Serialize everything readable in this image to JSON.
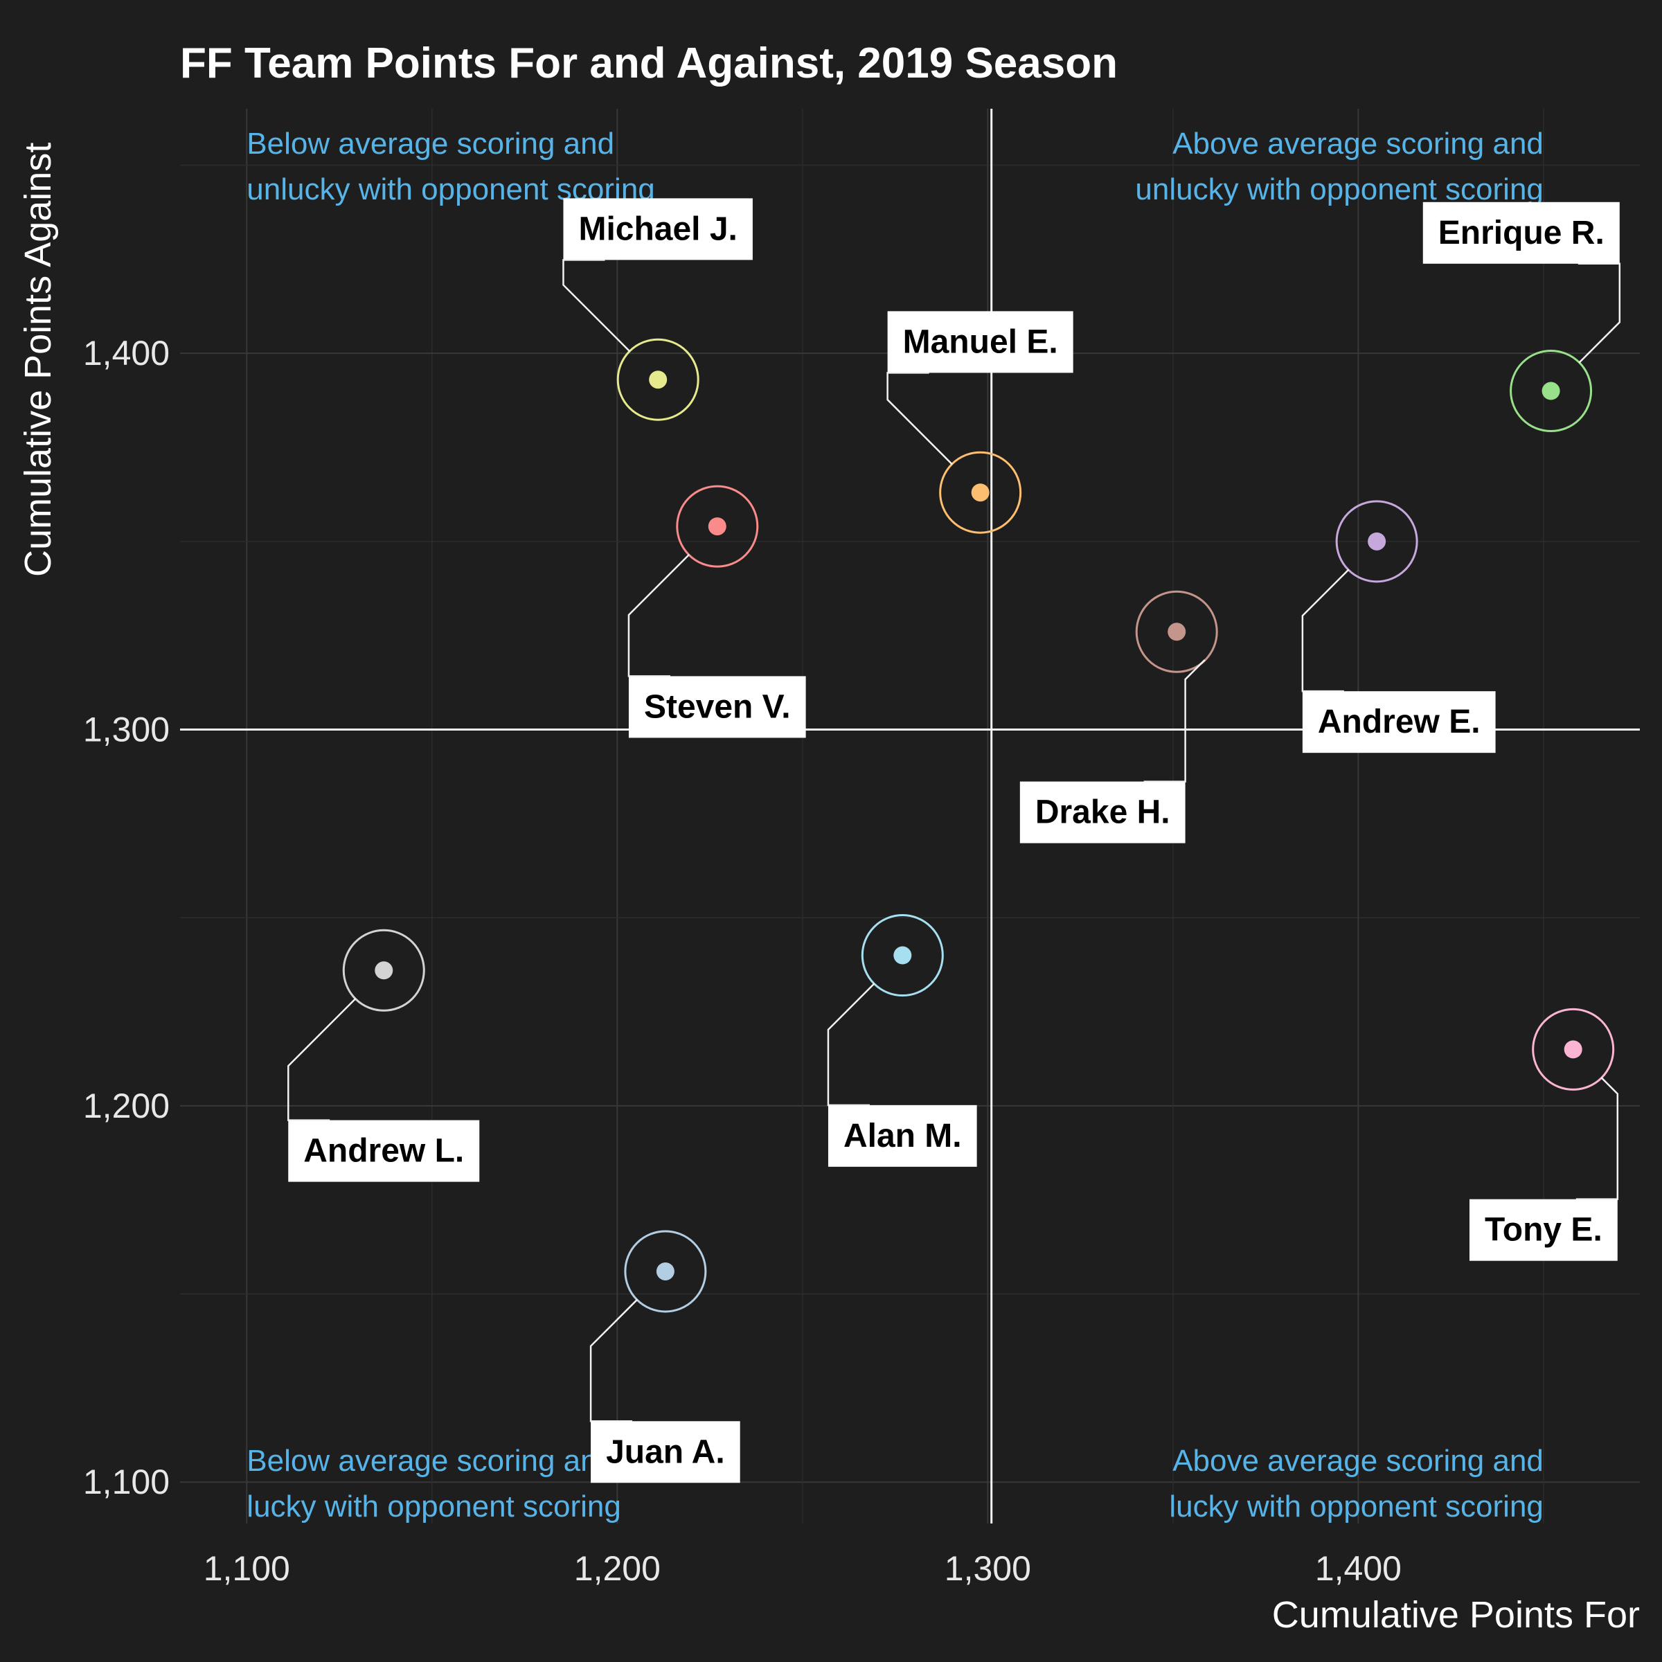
{
  "chart_data": {
    "type": "scatter",
    "title": "FF Team Points For and Against, 2019 Season",
    "xlabel": "Cumulative Points For",
    "ylabel": "Cumulative Points Against",
    "xlim": [
      1082,
      1476
    ],
    "ylim": [
      1089,
      1465
    ],
    "xticks": [
      1100,
      1200,
      1300,
      1400
    ],
    "xtick_labels": [
      "1,100",
      "1,200",
      "1,300",
      "1,400"
    ],
    "yticks": [
      1100,
      1200,
      1300,
      1400
    ],
    "ytick_labels": [
      "1,100",
      "1,200",
      "1,300",
      "1,400"
    ],
    "grid": true,
    "reference_lines": {
      "x": 1301,
      "y": 1300
    },
    "quadrant_labels": [
      {
        "lines": [
          "Below average scoring and",
          "unlucky with opponent scoring"
        ],
        "x": 1100,
        "y": 1453,
        "anchor": "start"
      },
      {
        "lines": [
          "Above average scoring and",
          "unlucky with opponent scoring"
        ],
        "x": 1450,
        "y": 1453,
        "anchor": "end"
      },
      {
        "lines": [
          "Below average scoring and",
          "lucky with opponent scoring"
        ],
        "x": 1100,
        "y": 1103,
        "anchor": "start"
      },
      {
        "lines": [
          "Above average scoring and",
          "lucky with opponent scoring"
        ],
        "x": 1450,
        "y": 1103,
        "anchor": "end"
      }
    ],
    "points": [
      {
        "name": "Michael J.",
        "x": 1211,
        "y": 1393,
        "color": "#e6ea8d",
        "label_x": 1211,
        "label_y": 1433,
        "label_side": "above"
      },
      {
        "name": "Steven V.",
        "x": 1227,
        "y": 1354,
        "color": "#f98b8b",
        "label_x": 1227,
        "label_y": 1306,
        "label_side": "below"
      },
      {
        "name": "Manuel E.",
        "x": 1298,
        "y": 1363,
        "color": "#fdbf6f",
        "label_x": 1298,
        "label_y": 1403,
        "label_side": "above"
      },
      {
        "name": "Enrique R.",
        "x": 1452,
        "y": 1390,
        "color": "#98e08a",
        "label_x": 1444,
        "label_y": 1432,
        "label_side": "above"
      },
      {
        "name": "Drake H.",
        "x": 1351,
        "y": 1326,
        "color": "#c4958a",
        "label_x": 1331,
        "label_y": 1278,
        "label_side": "below"
      },
      {
        "name": "Andrew E.",
        "x": 1405,
        "y": 1350,
        "color": "#c7a8dc",
        "label_x": 1411,
        "label_y": 1302,
        "label_side": "below"
      },
      {
        "name": "Andrew L.",
        "x": 1137,
        "y": 1236,
        "color": "#d3d3d3",
        "label_x": 1137,
        "label_y": 1188,
        "label_side": "below"
      },
      {
        "name": "Alan M.",
        "x": 1277,
        "y": 1240,
        "color": "#a6dff0",
        "label_x": 1277,
        "label_y": 1192,
        "label_side": "below"
      },
      {
        "name": "Tony E.",
        "x": 1458,
        "y": 1215,
        "color": "#fbb4d2",
        "label_x": 1450,
        "label_y": 1167,
        "label_side": "below"
      },
      {
        "name": "Juan A.",
        "x": 1213,
        "y": 1156,
        "color": "#b3cde3",
        "label_x": 1213,
        "label_y": 1108,
        "label_side": "below"
      }
    ]
  }
}
